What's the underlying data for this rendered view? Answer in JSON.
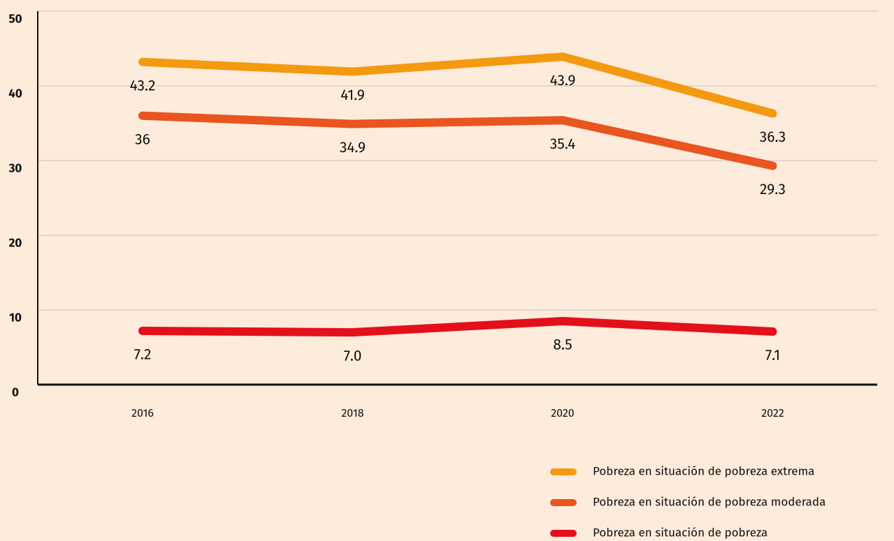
{
  "chart_data": {
    "type": "line",
    "categories": [
      "2016",
      "2018",
      "2020",
      "2022"
    ],
    "series": [
      {
        "name": "Pobreza en situación de pobreza extrema",
        "color": "#f39a10",
        "values": [
          43.2,
          41.9,
          43.9,
          36.3
        ],
        "value_labels": [
          "43.2",
          "41.9",
          "43.9",
          "36.3"
        ]
      },
      {
        "name": "Pobreza en situación de pobreza moderada",
        "color": "#e9541f",
        "values": [
          36,
          34.9,
          35.4,
          29.3
        ],
        "value_labels": [
          "36",
          "34.9",
          "35.4",
          "29.3"
        ]
      },
      {
        "name": "Pobreza en situación de pobreza",
        "color": "#e3101c",
        "values": [
          7.2,
          7.0,
          8.5,
          7.1
        ],
        "value_labels": [
          "7.2",
          "7.0",
          "8.5",
          "7.1"
        ]
      }
    ],
    "ylim": [
      0,
      50
    ],
    "yticks": [
      0,
      10,
      20,
      30,
      40,
      50
    ],
    "grid": true,
    "legend": "bottom-right"
  }
}
